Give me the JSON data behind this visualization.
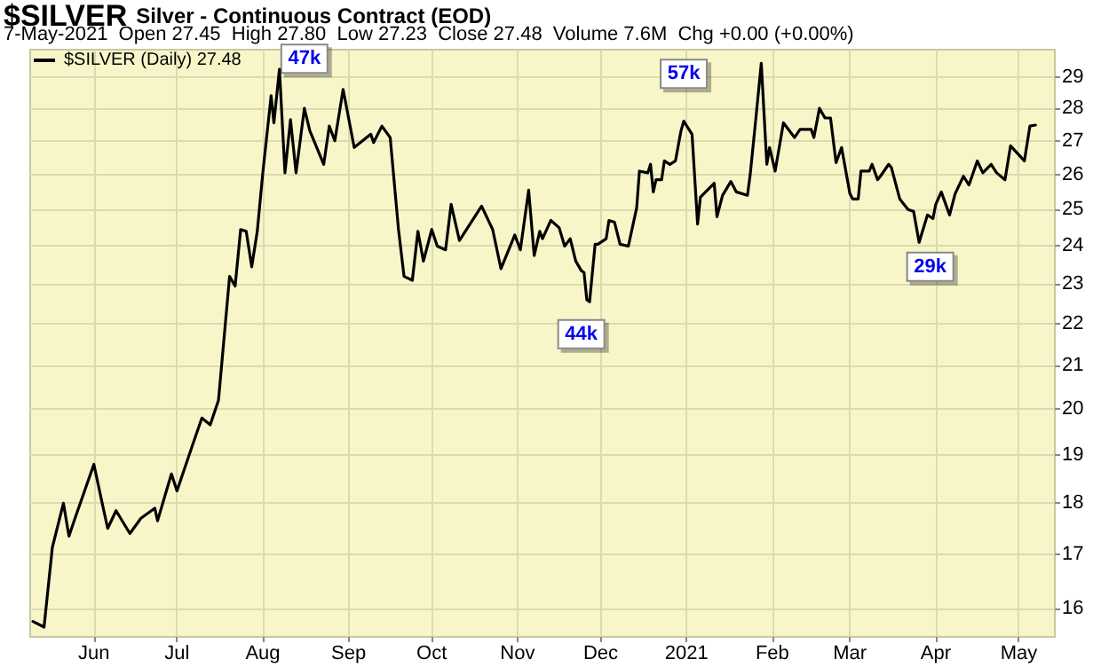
{
  "chart_data": {
    "type": "line",
    "title": "$SILVER",
    "subtitle": "Silver - Continuous Contract (EOD)",
    "annotations": [
      "7-May-2021  Open 27.45  High 27.80  Low 27.23  Close 27.48  Volume 7.6M  Chg +0.00 (+0.00%)",
      {
        "text": "47k",
        "x": "2020-08-16",
        "y": 29.6
      },
      {
        "text": "57k",
        "x": "2020-12-31",
        "y": 29.1
      },
      {
        "text": "44k",
        "x": "2020-11-24",
        "y": 21.75
      },
      {
        "text": "29k",
        "x": "2021-03-30",
        "y": 23.45
      }
    ],
    "x": [
      "2020-05-10",
      "2020-05-14",
      "2020-05-17",
      "2020-05-21",
      "2020-05-23",
      "2020-05-25",
      "2020-06-01",
      "2020-06-04",
      "2020-06-06",
      "2020-06-09",
      "2020-06-14",
      "2020-06-18",
      "2020-06-23",
      "2020-06-24",
      "2020-06-29",
      "2020-07-01",
      "2020-07-06",
      "2020-07-10",
      "2020-07-13",
      "2020-07-16",
      "2020-07-20",
      "2020-07-22",
      "2020-07-24",
      "2020-07-26",
      "2020-07-28",
      "2020-07-30",
      "2020-08-01",
      "2020-08-04",
      "2020-08-05",
      "2020-08-07",
      "2020-08-09",
      "2020-08-11",
      "2020-08-13",
      "2020-08-16",
      "2020-08-18",
      "2020-08-23",
      "2020-08-25",
      "2020-08-27",
      "2020-08-30",
      "2020-09-03",
      "2020-09-09",
      "2020-09-10",
      "2020-09-13",
      "2020-09-16",
      "2020-09-19",
      "2020-09-21",
      "2020-09-24",
      "2020-09-26",
      "2020-09-28",
      "2020-10-01",
      "2020-10-03",
      "2020-10-06",
      "2020-10-08",
      "2020-10-11",
      "2020-10-19",
      "2020-10-23",
      "2020-10-26",
      "2020-10-31",
      "2020-11-02",
      "2020-11-05",
      "2020-11-07",
      "2020-11-09",
      "2020-11-10",
      "2020-11-13",
      "2020-11-16",
      "2020-11-18",
      "2020-11-20",
      "2020-11-22",
      "2020-11-24",
      "2020-11-25",
      "2020-11-26",
      "2020-11-27",
      "2020-11-29",
      "2020-11-30",
      "2020-12-03",
      "2020-12-04",
      "2020-12-06",
      "2020-12-08",
      "2020-12-11",
      "2020-12-14",
      "2020-12-15",
      "2020-12-18",
      "2020-12-19",
      "2020-12-20",
      "2020-12-21",
      "2020-12-23",
      "2020-12-24",
      "2020-12-26",
      "2020-12-28",
      "2020-12-30",
      "2020-12-31",
      "2021-01-03",
      "2021-01-05",
      "2021-01-06",
      "2021-01-11",
      "2021-01-12",
      "2021-01-14",
      "2021-01-17",
      "2021-01-19",
      "2021-01-23",
      "2021-01-24",
      "2021-01-26",
      "2021-01-28",
      "2021-01-30",
      "2021-01-31",
      "2021-02-02",
      "2021-02-05",
      "2021-02-09",
      "2021-02-11",
      "2021-02-15",
      "2021-02-16",
      "2021-02-18",
      "2021-02-20",
      "2021-02-22",
      "2021-02-24",
      "2021-02-26",
      "2021-03-01",
      "2021-03-02",
      "2021-03-04",
      "2021-03-05",
      "2021-03-08",
      "2021-03-09",
      "2021-03-11",
      "2021-03-12",
      "2021-03-15",
      "2021-03-16",
      "2021-03-19",
      "2021-03-22",
      "2021-03-24",
      "2021-03-26",
      "2021-03-29",
      "2021-03-31",
      "2021-04-01",
      "2021-04-03",
      "2021-04-06",
      "2021-04-08",
      "2021-04-11",
      "2021-04-13",
      "2021-04-16",
      "2021-04-18",
      "2021-04-21",
      "2021-04-23",
      "2021-04-26",
      "2021-04-28",
      "2021-05-03",
      "2021-05-05",
      "2021-05-07"
    ],
    "series": [
      {
        "name": "$SILVER (Daily) 27.48",
        "color": "#000000",
        "values": [
          15.77,
          15.67,
          17.13,
          18.0,
          17.35,
          17.67,
          18.8,
          18.0,
          17.5,
          17.85,
          17.4,
          17.7,
          17.9,
          17.65,
          18.6,
          18.25,
          19.1,
          19.8,
          19.65,
          20.2,
          23.2,
          22.95,
          24.45,
          24.4,
          23.45,
          24.4,
          26.05,
          28.4,
          27.55,
          29.25,
          26.05,
          27.65,
          26.05,
          28.0,
          27.3,
          26.3,
          27.45,
          27.0,
          28.6,
          26.8,
          27.2,
          26.95,
          27.45,
          27.1,
          24.45,
          23.2,
          23.1,
          24.4,
          23.6,
          24.45,
          24.0,
          23.9,
          25.15,
          24.15,
          25.1,
          24.45,
          23.4,
          24.3,
          23.9,
          25.55,
          23.75,
          24.4,
          24.2,
          24.7,
          24.5,
          24.0,
          24.2,
          23.6,
          23.35,
          23.3,
          22.6,
          22.55,
          24.05,
          24.05,
          24.2,
          24.7,
          24.65,
          24.05,
          24.0,
          25.05,
          26.1,
          26.05,
          26.3,
          25.5,
          25.85,
          25.85,
          26.4,
          26.3,
          26.4,
          27.3,
          27.6,
          27.2,
          24.6,
          25.35,
          25.75,
          24.8,
          25.4,
          25.8,
          25.5,
          25.4,
          26.0,
          27.65,
          29.45,
          26.3,
          26.8,
          26.1,
          27.55,
          27.1,
          27.35,
          27.35,
          27.1,
          28.0,
          27.7,
          27.7,
          26.35,
          26.8,
          25.45,
          25.3,
          25.3,
          26.1,
          26.1,
          26.3,
          25.85,
          25.95,
          26.3,
          26.2,
          25.3,
          25.0,
          24.95,
          24.1,
          24.85,
          24.75,
          25.15,
          25.5,
          24.85,
          25.45,
          25.95,
          25.7,
          26.4,
          26.05,
          26.3,
          26.05,
          25.85,
          26.85,
          26.4,
          27.45,
          27.48
        ]
      }
    ],
    "xlim": [
      "2020-05-09",
      "2021-05-14"
    ],
    "xticks": [
      {
        "value": "2020-06-01",
        "label": "Jun"
      },
      {
        "value": "2020-07-01",
        "label": "Jul"
      },
      {
        "value": "2020-08-01",
        "label": "Aug"
      },
      {
        "value": "2020-09-01",
        "label": "Sep"
      },
      {
        "value": "2020-10-01",
        "label": "Oct"
      },
      {
        "value": "2020-11-01",
        "label": "Nov"
      },
      {
        "value": "2020-12-01",
        "label": "Dec"
      },
      {
        "value": "2021-01-01",
        "label": "2021"
      },
      {
        "value": "2021-02-01",
        "label": "Feb"
      },
      {
        "value": "2021-03-01",
        "label": "Mar"
      },
      {
        "value": "2021-04-01",
        "label": "Apr"
      },
      {
        "value": "2021-05-01",
        "label": "May"
      }
    ],
    "ylim": [
      15.5,
      29.9
    ],
    "yticks": [
      16,
      17,
      18,
      19,
      20,
      21,
      22,
      23,
      24,
      25,
      26,
      27,
      28,
      29
    ],
    "log": "y",
    "grid": true,
    "legend": "top left",
    "marker": "none",
    "line_style": "solid"
  }
}
